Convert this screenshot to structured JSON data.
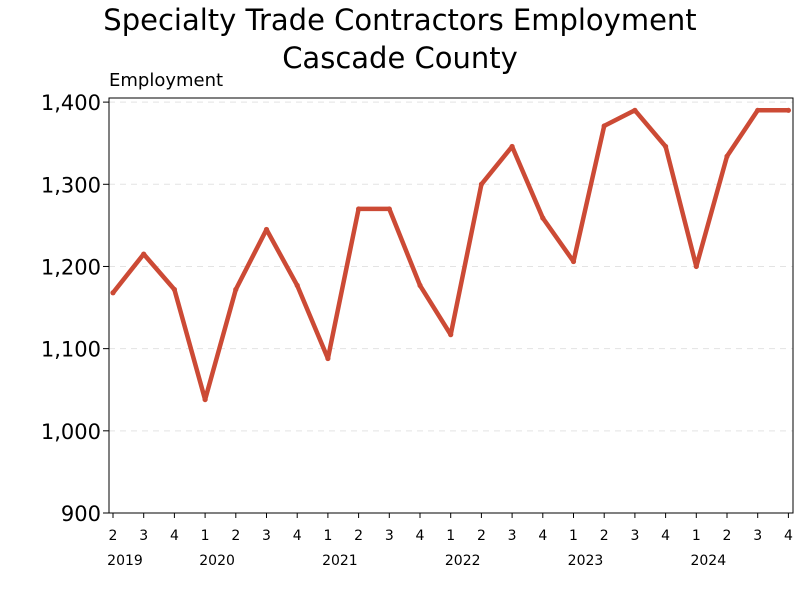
{
  "chart_data": {
    "type": "line",
    "title_lines": [
      "Specialty Trade Contractors Employment",
      "Cascade County"
    ],
    "ylabel": "Employment",
    "xlabel": "",
    "ylim": [
      900,
      1405
    ],
    "yticks": [
      900,
      1000,
      1100,
      1200,
      1300,
      1400
    ],
    "ytick_labels": [
      "900",
      "1,000",
      "1,100",
      "1,200",
      "1,300",
      "1,400"
    ],
    "grid": "horizontal dashed",
    "legend": "none",
    "line_color": "#cc4a35",
    "x": [
      "2019 Q2",
      "2019 Q3",
      "2019 Q4",
      "2020 Q1",
      "2020 Q2",
      "2020 Q3",
      "2020 Q4",
      "2021 Q1",
      "2021 Q2",
      "2021 Q3",
      "2021 Q4",
      "2022 Q1",
      "2022 Q2",
      "2022 Q3",
      "2022 Q4",
      "2023 Q1",
      "2023 Q2",
      "2023 Q3",
      "2023 Q4",
      "2024 Q1",
      "2024 Q2",
      "2024 Q3",
      "2024 Q4"
    ],
    "quarter_labels": [
      "2",
      "3",
      "4",
      "1",
      "2",
      "3",
      "4",
      "1",
      "2",
      "3",
      "4",
      "1",
      "2",
      "3",
      "4",
      "1",
      "2",
      "3",
      "4",
      "1",
      "2",
      "3",
      "4"
    ],
    "year_labels": [
      {
        "text": "2019",
        "index": 0
      },
      {
        "text": "2020",
        "index": 3
      },
      {
        "text": "2021",
        "index": 7
      },
      {
        "text": "2022",
        "index": 11
      },
      {
        "text": "2023",
        "index": 15
      },
      {
        "text": "2024",
        "index": 19
      }
    ],
    "series": [
      {
        "values": [
          1168,
          1215,
          1172,
          1038,
          1172,
          1245,
          1177,
          1088,
          1270,
          1270,
          1177,
          1117,
          1300,
          1346,
          1259,
          1206,
          1371,
          1390,
          1346,
          1200,
          1334,
          1390,
          1390
        ]
      }
    ]
  }
}
